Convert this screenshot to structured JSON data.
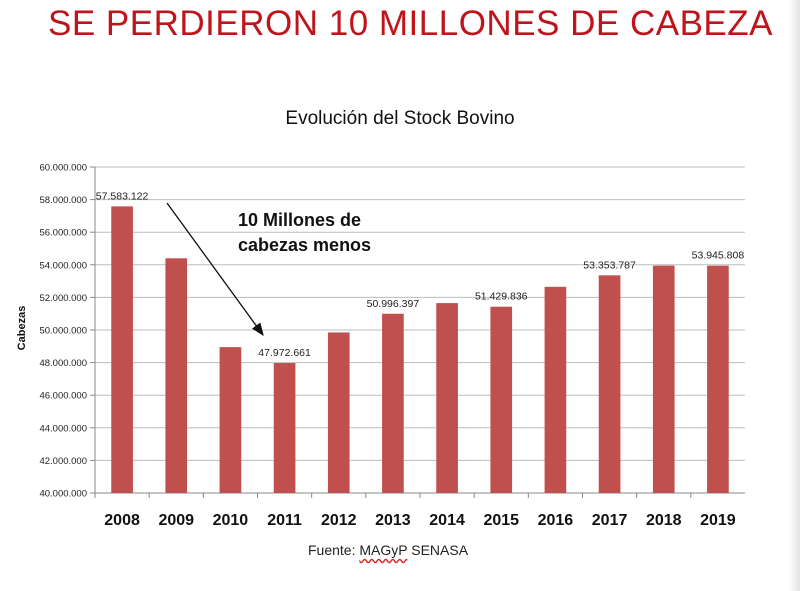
{
  "slide_title": "SE PERDIERON 10 MILLONES DE CABEZA",
  "annotation": {
    "line1": "10 Millones de",
    "line2": "cabezas menos"
  },
  "source": {
    "prefix": "Fuente: ",
    "underlined": "MAGyP",
    "suffix": " SENASA"
  },
  "colors": {
    "title": "#c0141c",
    "bar": "#c0504d"
  },
  "chart_data": {
    "type": "bar",
    "title": "Evolución del Stock Bovino",
    "xlabel": "",
    "ylabel": "Cabezas",
    "categories": [
      "2008",
      "2009",
      "2010",
      "2011",
      "2012",
      "2013",
      "2014",
      "2015",
      "2016",
      "2017",
      "2018",
      "2019"
    ],
    "values": [
      57583122,
      54400000,
      48950000,
      47972661,
      49850000,
      50996397,
      51650000,
      51429836,
      52650000,
      53353787,
      53950000,
      53945808
    ],
    "data_labels": [
      "57.583.122",
      "",
      "",
      "47.972.661",
      "",
      "50.996.397",
      "",
      "51.429.836",
      "",
      "53.353.787",
      "",
      "53.945.808"
    ],
    "ylim": [
      40000000,
      60000000
    ],
    "yticks": [
      40000000,
      42000000,
      44000000,
      46000000,
      48000000,
      50000000,
      52000000,
      54000000,
      56000000,
      58000000,
      60000000
    ],
    "ytick_labels": [
      "40.000.000",
      "42.000.000",
      "44.000.000",
      "46.000.000",
      "48.000.000",
      "50.000.000",
      "52.000.000",
      "54.000.000",
      "56.000.000",
      "58.000.000",
      "60.000.000"
    ],
    "grid": true
  }
}
